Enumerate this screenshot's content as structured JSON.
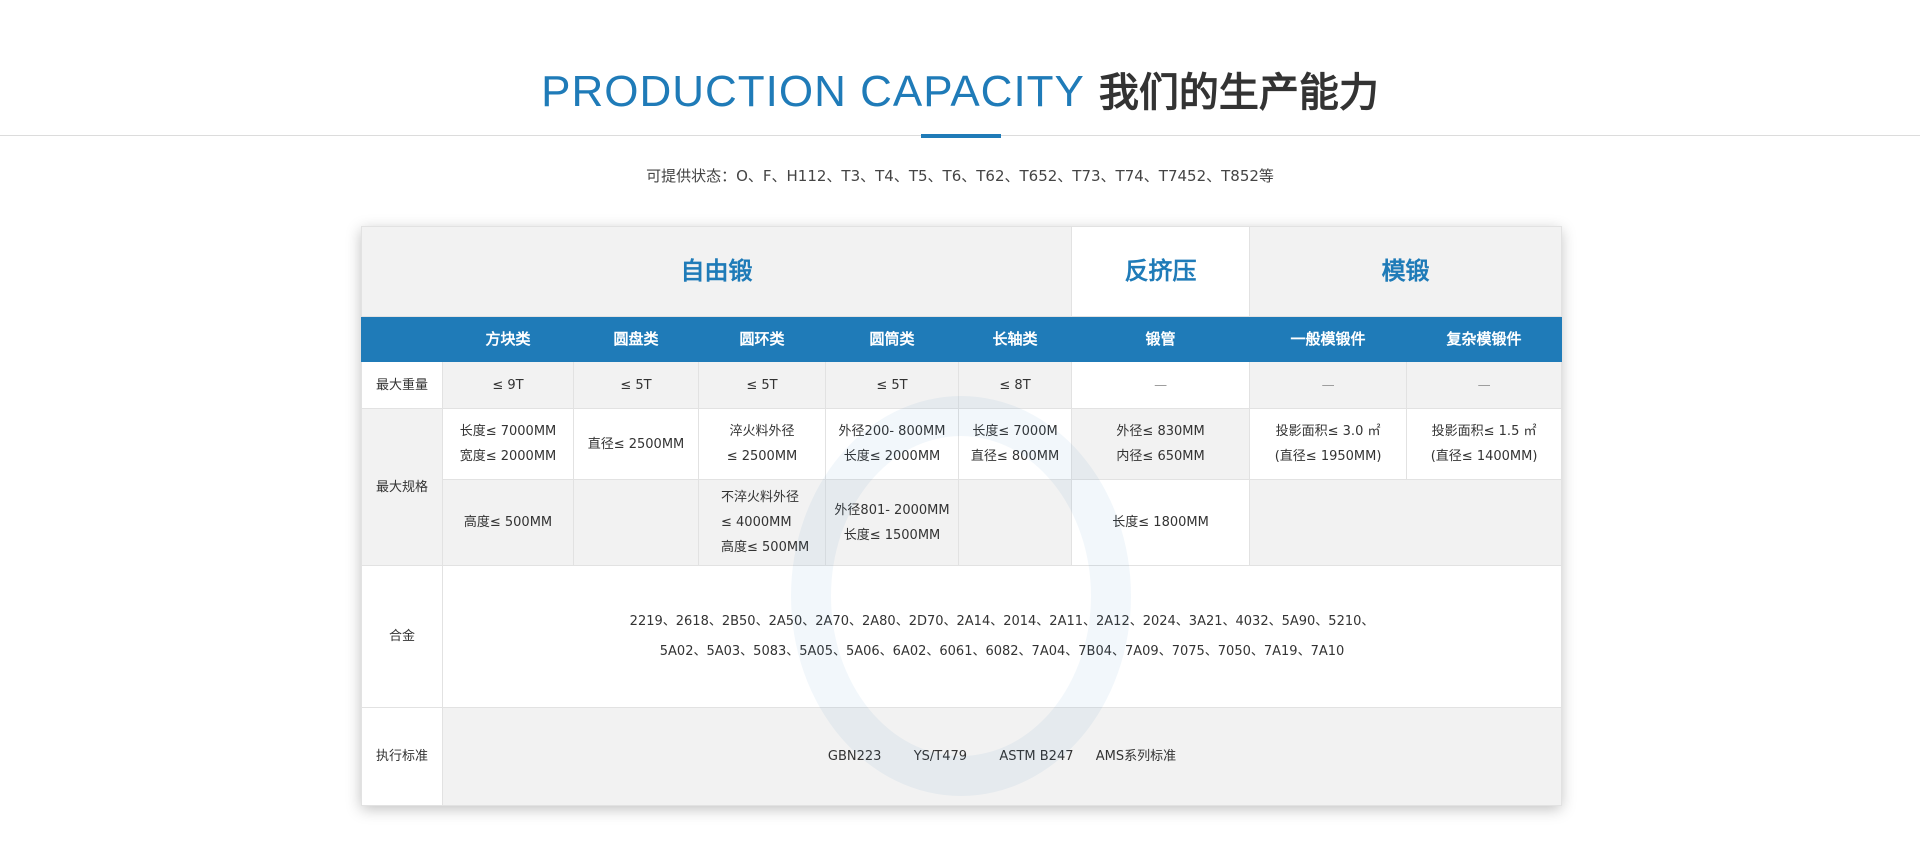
{
  "heading": {
    "en": "PRODUCTION CAPACITY",
    "cn": "我们的生产能力"
  },
  "subtitle": "可提供状态：O、F、H112、T3、T4、T5、T6、T62、T652、T73、T74、T7452、T852等",
  "accent_color": "#1f7bb8",
  "table": {
    "groups": [
      "自由锻",
      "反挤压",
      "模锻"
    ],
    "columns": [
      "方块类",
      "圆盘类",
      "圆环类",
      "圆筒类",
      "长轴类",
      "锻管",
      "一般模锻件",
      "复杂模锻件"
    ],
    "rows": {
      "max_weight": {
        "label": "最大重量",
        "values": [
          "≤ 9T",
          "≤ 5T",
          "≤ 5T",
          "≤ 5T",
          "≤ 8T",
          "—",
          "—",
          "—"
        ]
      },
      "max_spec": {
        "label": "最大规格",
        "row1": [
          [
            "长度≤ 7000MM",
            "宽度≤ 2000MM"
          ],
          [
            "直径≤ 2500MM"
          ],
          [
            "淬火料外径",
            "≤ 2500MM"
          ],
          [
            "外径200- 800MM",
            "长度≤ 2000MM"
          ],
          [
            "长度≤ 7000M",
            "直径≤ 800MM"
          ],
          [
            "外径≤ 830MM",
            "内径≤ 650MM"
          ],
          [
            "投影面积≤ 3.0 ㎡",
            "(直径≤ 1950MM)"
          ],
          [
            "投影面积≤ 1.5 ㎡",
            "(直径≤ 1400MM)"
          ]
        ],
        "row2": [
          [
            "高度≤ 500MM"
          ],
          [
            "不淬火料外径",
            "≤ 4000MM",
            "高度≤ 500MM"
          ],
          [
            "外径801- 2000MM",
            "长度≤ 1500MM"
          ],
          [
            "长度≤ 1800MM"
          ]
        ]
      },
      "alloy": {
        "label": "合金",
        "lines": [
          "2219、2618、2B50、2A50、2A70、2A80、2D70、2A14、2014、2A11、2A12、2024、3A21、4032、5A90、5210、",
          "5A02、5A03、5083、5A05、5A06、6A02、6061、6082、7A04、7B04、7A09、7075、7050、7A19、7A10"
        ]
      },
      "standard": {
        "label": "执行标准",
        "items": [
          "GBN223",
          "YS/T479",
          "ASTM B247",
          "AMS系列标准"
        ]
      }
    }
  }
}
